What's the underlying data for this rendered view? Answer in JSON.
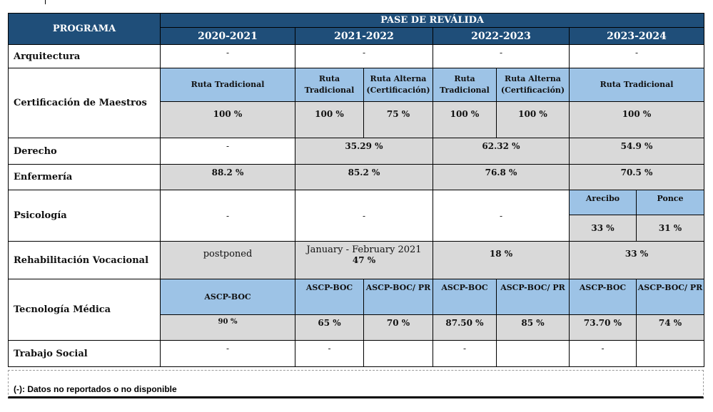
{
  "header": {
    "program_label": "PROGRAMA",
    "group_label": "PASE DE REVÁLIDA",
    "years": [
      "2020-2021",
      "2021-2022",
      "2022-2023",
      "2023-2024"
    ]
  },
  "rows": {
    "arquitectura": {
      "label": "Arquitectura",
      "values": [
        "-",
        "-",
        "-",
        "-"
      ]
    },
    "certificacion": {
      "label": "Certificación de Maestros",
      "routes": {
        "y2021": "Ruta Tradicional",
        "y2122_trad": "Ruta Tradicional",
        "y2122_alt": "Ruta Alterna (Certificación)",
        "y2223_trad": "Ruta Tradicional",
        "y2223_alt": "Ruta Alterna (Certificación)",
        "y2324": "Ruta Tradicional"
      },
      "values": [
        "100 %",
        "100 %",
        "75 %",
        "100 %",
        "100 %",
        "100 %"
      ]
    },
    "derecho": {
      "label": "Derecho",
      "values": [
        "-",
        "35.29 %",
        "62.32 %",
        "54.9 %"
      ]
    },
    "enfermeria": {
      "label": "Enfermería",
      "values": [
        "88.2 %",
        "85.2 %",
        "76.8 %",
        "70.5 %"
      ]
    },
    "psicologia": {
      "label": "Psicología",
      "values": [
        "-",
        "-",
        "-"
      ],
      "campuses": [
        "Arecibo",
        "Ponce"
      ],
      "campus_values": [
        "33 %",
        "31 %"
      ]
    },
    "rehabilitacion": {
      "label": "Rehabilitación Vocacional",
      "y2021": "postponed",
      "y2122_note": "January - February 2021",
      "y2122": "47 %",
      "y2223": "18 %",
      "y2324": "33 %"
    },
    "tecnologia": {
      "label": "Tecnología Médica",
      "exams": [
        "ASCP-BOC",
        "ASCP-BOC",
        "ASCP-BOC/ PR",
        "ASCP-BOC",
        "ASCP-BOC/ PR",
        "ASCP-BOC",
        "ASCP-BOC/ PR"
      ],
      "values": [
        "90 %",
        "65 %",
        "70 %",
        "87.50 %",
        "85 %",
        "73.70 %",
        "74 %"
      ]
    },
    "trabajo_social": {
      "label": "Trabajo Social",
      "values": [
        "-",
        "-",
        "-",
        "-"
      ]
    }
  },
  "footnote": "(-): Datos no reportados o no disponible"
}
